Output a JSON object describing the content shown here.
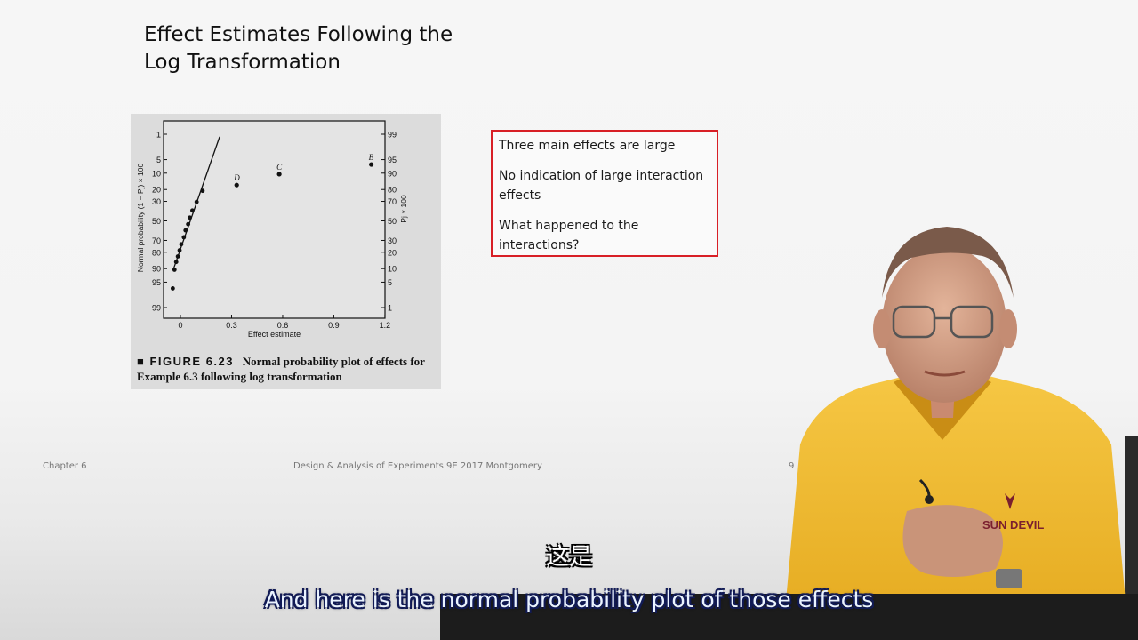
{
  "slide": {
    "title_line1": "Effect Estimates Following the",
    "title_line2": "Log Transformation",
    "caption_label": "■ FIGURE 6.23",
    "caption_text": "Normal probability plot of effects for Example 6.3 following log transformation",
    "callout": [
      "Three main effects are large",
      "No indication of large interaction effects",
      "What happened to the interactions?"
    ],
    "footer_left": "Chapter 6",
    "footer_center": "Design & Analysis of Experiments 9E 2017 Montgomery",
    "footer_page": "9"
  },
  "subtitles": {
    "chinese": "这是",
    "english": "And here is the normal probability plot of those effects"
  },
  "chart_data": {
    "type": "scatter",
    "xlabel": "Effect estimate",
    "ylabel_left": "Normal probability (1 − Pj) × 100",
    "ylabel_right": "Pj × 100",
    "xlim": [
      -0.06,
      1.2
    ],
    "x_ticks": [
      "0",
      "0.3",
      "0.6",
      "0.9",
      "1.2"
    ],
    "left_ticks": [
      "1",
      "5",
      "10",
      "20",
      "30",
      "50",
      "70",
      "80",
      "90",
      "95",
      "99"
    ],
    "right_ticks": [
      "99",
      "95",
      "90",
      "80",
      "70",
      "50",
      "30",
      "20",
      "10",
      "5",
      "1"
    ],
    "tick_probabilities": [
      1,
      5,
      10,
      20,
      30,
      50,
      70,
      80,
      90,
      95,
      99
    ],
    "labeled_points": [
      {
        "label": "B",
        "x": 1.12,
        "p": 6.5
      },
      {
        "label": "C",
        "x": 0.58,
        "p": 10.5
      },
      {
        "label": "D",
        "x": 0.33,
        "p": 16.8
      }
    ],
    "points": [
      {
        "x": -0.045,
        "p": 96.5
      },
      {
        "x": -0.035,
        "p": 90.5
      },
      {
        "x": -0.025,
        "p": 86.5
      },
      {
        "x": -0.015,
        "p": 83
      },
      {
        "x": -0.005,
        "p": 78.5
      },
      {
        "x": 0.005,
        "p": 73.5
      },
      {
        "x": 0.02,
        "p": 67
      },
      {
        "x": 0.03,
        "p": 60
      },
      {
        "x": 0.045,
        "p": 53.5
      },
      {
        "x": 0.055,
        "p": 46.5
      },
      {
        "x": 0.07,
        "p": 39
      },
      {
        "x": 0.095,
        "p": 30.5
      },
      {
        "x": 0.13,
        "p": 21
      }
    ],
    "fit_line": [
      {
        "x": -0.04,
        "p": 90
      },
      {
        "x": 0.23,
        "p": 1.2
      }
    ]
  }
}
